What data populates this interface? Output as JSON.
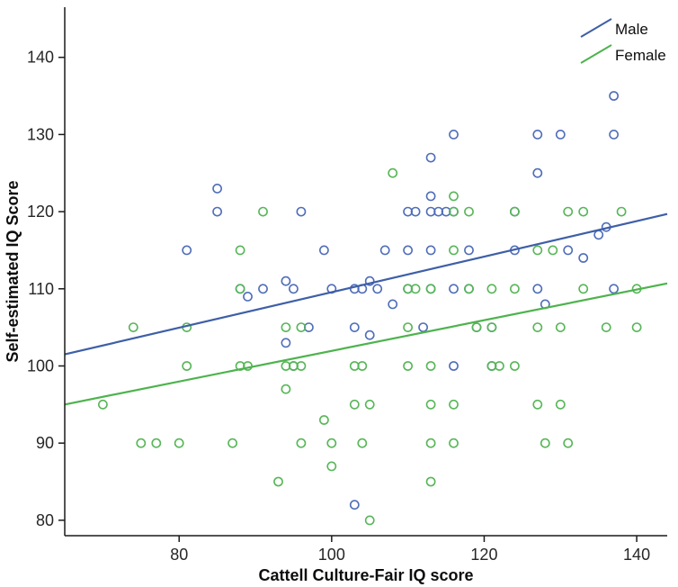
{
  "chart_data": {
    "type": "scatter",
    "title": "",
    "xlabel": "Cattell Culture-Fair IQ score",
    "ylabel": "Self-estimated IQ Score",
    "xlim": [
      65,
      144
    ],
    "ylim": [
      78,
      146.5
    ],
    "xticks": [
      80,
      100,
      120,
      140
    ],
    "yticks": [
      80,
      90,
      100,
      110,
      120,
      130,
      140
    ],
    "grid": false,
    "legend": {
      "position": "top-right",
      "entries": [
        "Male",
        "Female"
      ]
    },
    "series": [
      {
        "name": "Male",
        "point_color": "#4f6db8",
        "line_color": "#3e5fa7",
        "marker": "open-circle",
        "fit_line": {
          "x1": 65,
          "y1": 101.5,
          "x2": 144,
          "y2": 119.7
        },
        "points": [
          [
            81,
            115
          ],
          [
            85,
            123
          ],
          [
            85,
            120
          ],
          [
            88,
            110
          ],
          [
            89,
            109
          ],
          [
            91,
            110
          ],
          [
            94,
            111
          ],
          [
            94,
            103
          ],
          [
            95,
            110
          ],
          [
            95,
            100
          ],
          [
            96,
            120
          ],
          [
            97,
            105
          ],
          [
            99,
            115
          ],
          [
            100,
            110
          ],
          [
            103,
            110
          ],
          [
            103,
            105
          ],
          [
            103,
            82
          ],
          [
            104,
            110
          ],
          [
            105,
            111
          ],
          [
            105,
            104
          ],
          [
            106,
            110
          ],
          [
            107,
            115
          ],
          [
            108,
            108
          ],
          [
            110,
            120
          ],
          [
            110,
            115
          ],
          [
            110,
            110
          ],
          [
            111,
            120
          ],
          [
            112,
            105
          ],
          [
            113,
            127
          ],
          [
            113,
            122
          ],
          [
            113,
            120
          ],
          [
            113,
            115
          ],
          [
            113,
            110
          ],
          [
            114,
            120
          ],
          [
            115,
            120
          ],
          [
            116,
            130
          ],
          [
            116,
            120
          ],
          [
            116,
            110
          ],
          [
            116,
            100
          ],
          [
            118,
            115
          ],
          [
            118,
            110
          ],
          [
            119,
            105
          ],
          [
            121,
            105
          ],
          [
            121,
            100
          ],
          [
            124,
            120
          ],
          [
            124,
            115
          ],
          [
            127,
            130
          ],
          [
            127,
            125
          ],
          [
            127,
            110
          ],
          [
            128,
            108
          ],
          [
            130,
            130
          ],
          [
            131,
            115
          ],
          [
            133,
            114
          ],
          [
            135,
            117
          ],
          [
            136,
            118
          ],
          [
            137,
            135
          ],
          [
            137,
            130
          ],
          [
            137,
            110
          ]
        ]
      },
      {
        "name": "Female",
        "point_color": "#57b657",
        "line_color": "#4db34d",
        "marker": "open-circle",
        "fit_line": {
          "x1": 65,
          "y1": 95.0,
          "x2": 144,
          "y2": 110.7
        },
        "points": [
          [
            70,
            95
          ],
          [
            74,
            105
          ],
          [
            75,
            90
          ],
          [
            77,
            90
          ],
          [
            80,
            90
          ],
          [
            81,
            105
          ],
          [
            81,
            100
          ],
          [
            87,
            90
          ],
          [
            88,
            115
          ],
          [
            88,
            110
          ],
          [
            88,
            100
          ],
          [
            89,
            100
          ],
          [
            91,
            120
          ],
          [
            93,
            85
          ],
          [
            94,
            105
          ],
          [
            94,
            100
          ],
          [
            94,
            97
          ],
          [
            95,
            100
          ],
          [
            96,
            105
          ],
          [
            96,
            100
          ],
          [
            96,
            90
          ],
          [
            99,
            93
          ],
          [
            100,
            90
          ],
          [
            100,
            87
          ],
          [
            103,
            100
          ],
          [
            103,
            95
          ],
          [
            104,
            100
          ],
          [
            104,
            90
          ],
          [
            105,
            95
          ],
          [
            105,
            80
          ],
          [
            108,
            125
          ],
          [
            110,
            110
          ],
          [
            110,
            105
          ],
          [
            110,
            100
          ],
          [
            111,
            110
          ],
          [
            113,
            110
          ],
          [
            113,
            100
          ],
          [
            113,
            95
          ],
          [
            113,
            90
          ],
          [
            113,
            85
          ],
          [
            116,
            122
          ],
          [
            116,
            120
          ],
          [
            116,
            115
          ],
          [
            116,
            95
          ],
          [
            116,
            90
          ],
          [
            118,
            120
          ],
          [
            118,
            110
          ],
          [
            119,
            105
          ],
          [
            121,
            110
          ],
          [
            121,
            105
          ],
          [
            121,
            100
          ],
          [
            122,
            100
          ],
          [
            124,
            120
          ],
          [
            124,
            110
          ],
          [
            124,
            100
          ],
          [
            127,
            115
          ],
          [
            127,
            105
          ],
          [
            127,
            95
          ],
          [
            128,
            90
          ],
          [
            129,
            115
          ],
          [
            130,
            105
          ],
          [
            130,
            95
          ],
          [
            131,
            120
          ],
          [
            131,
            90
          ],
          [
            133,
            120
          ],
          [
            133,
            110
          ],
          [
            136,
            105
          ],
          [
            138,
            120
          ],
          [
            140,
            110
          ],
          [
            140,
            105
          ]
        ]
      }
    ],
    "axis_color": "#1a1a1a"
  }
}
